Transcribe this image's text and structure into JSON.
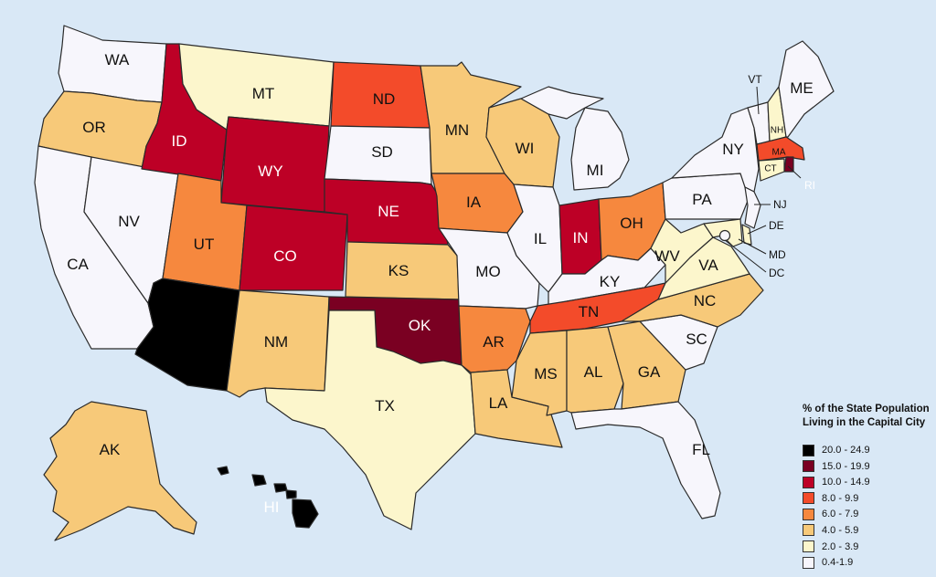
{
  "legend": {
    "title_line1": "% of the State Population",
    "title_line2": "Living in the Capital City",
    "bins": [
      {
        "label": "20.0 - 24.9",
        "color": "#000000"
      },
      {
        "label": "15.0 - 19.9",
        "color": "#7a0022"
      },
      {
        "label": "10.0 - 14.9",
        "color": "#bd0026"
      },
      {
        "label": "8.0 - 9.9",
        "color": "#f34b2a"
      },
      {
        "label": "6.0 - 7.9",
        "color": "#f6883e"
      },
      {
        "label": "4.0 - 5.9",
        "color": "#f7c979"
      },
      {
        "label": "2.0 - 3.9",
        "color": "#fcf6cc"
      },
      {
        "label": "0.4-1.9",
        "color": "#f7f6fc"
      }
    ]
  },
  "states": {
    "WA": {
      "label": "WA",
      "bin": 7
    },
    "OR": {
      "label": "OR",
      "bin": 5
    },
    "CA": {
      "label": "CA",
      "bin": 7
    },
    "NV": {
      "label": "NV",
      "bin": 7
    },
    "ID": {
      "label": "ID",
      "bin": 2
    },
    "MT": {
      "label": "MT",
      "bin": 6
    },
    "WY": {
      "label": "WY",
      "bin": 2
    },
    "UT": {
      "label": "UT",
      "bin": 4
    },
    "AZ": {
      "label": "",
      "bin": 0
    },
    "CO": {
      "label": "CO",
      "bin": 2
    },
    "NM": {
      "label": "NM",
      "bin": 5
    },
    "ND": {
      "label": "ND",
      "bin": 3
    },
    "SD": {
      "label": "SD",
      "bin": 7
    },
    "NE": {
      "label": "NE",
      "bin": 2
    },
    "KS": {
      "label": "KS",
      "bin": 5
    },
    "OK": {
      "label": "OK",
      "bin": 1
    },
    "TX": {
      "label": "TX",
      "bin": 6
    },
    "MN": {
      "label": "MN",
      "bin": 5
    },
    "IA": {
      "label": "IA",
      "bin": 4
    },
    "MO": {
      "label": "MO",
      "bin": 7
    },
    "AR": {
      "label": "AR",
      "bin": 4
    },
    "LA": {
      "label": "LA",
      "bin": 5
    },
    "WI": {
      "label": "WI",
      "bin": 5
    },
    "IL": {
      "label": "IL",
      "bin": 7
    },
    "MI": {
      "label": "MI",
      "bin": 7
    },
    "IN": {
      "label": "IN",
      "bin": 2
    },
    "OH": {
      "label": "OH",
      "bin": 4
    },
    "KY": {
      "label": "KY",
      "bin": 7
    },
    "TN": {
      "label": "TN",
      "bin": 3
    },
    "MS": {
      "label": "MS",
      "bin": 5
    },
    "AL": {
      "label": "AL",
      "bin": 5
    },
    "GA": {
      "label": "GA",
      "bin": 5
    },
    "FL": {
      "label": "FL",
      "bin": 7
    },
    "SC": {
      "label": "SC",
      "bin": 7
    },
    "NC": {
      "label": "NC",
      "bin": 5
    },
    "VA": {
      "label": "VA",
      "bin": 6
    },
    "WV": {
      "label": "WV",
      "bin": 6
    },
    "PA": {
      "label": "PA",
      "bin": 7
    },
    "NY": {
      "label": "NY",
      "bin": 7
    },
    "VT": {
      "label": "VT",
      "bin": 7
    },
    "NH": {
      "label": "NH",
      "bin": 6
    },
    "ME": {
      "label": "ME",
      "bin": 7
    },
    "MA": {
      "label": "MA",
      "bin": 3
    },
    "RI": {
      "label": "RI",
      "bin": 1
    },
    "CT": {
      "label": "CT",
      "bin": 6
    },
    "NJ": {
      "label": "NJ",
      "bin": 7
    },
    "DE": {
      "label": "DE",
      "bin": 6
    },
    "MD": {
      "label": "MD",
      "bin": 6
    },
    "DC": {
      "label": "DC",
      "bin": 7
    },
    "AK": {
      "label": "AK",
      "bin": 5
    },
    "HI": {
      "label": "HI",
      "bin": 0
    }
  }
}
